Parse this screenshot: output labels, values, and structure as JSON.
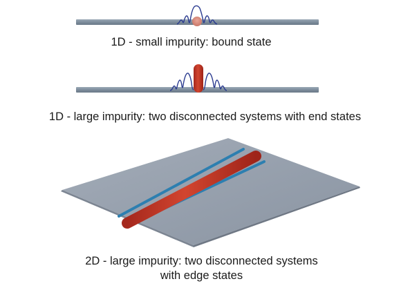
{
  "captions": {
    "small_1d": "1D - small impurity: bound state",
    "large_1d": "1D - large impurity: two disconnected systems with end states",
    "large_2d_line1": "2D - large impurity: two disconnected systems",
    "large_2d_line2": "with edge states"
  },
  "colors": {
    "wire": "#7d8d9c",
    "sheet": "#959eab",
    "impurity": "#c0392b",
    "bound_state_curve": "#2a3a8f",
    "edge_state": "#2d7fb0",
    "small_impurity": "#d98c7e"
  }
}
